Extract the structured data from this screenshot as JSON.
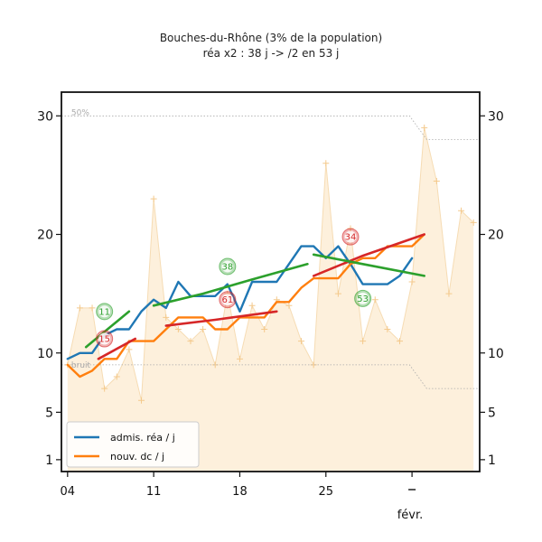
{
  "chart_data": {
    "type": "line",
    "title": "Bouches-du-Rhône (3% de la population)",
    "subtitle": "réa x2 : 38 j -> /2 en 53 j",
    "x_ticks": [
      {
        "day": 0,
        "label": "04"
      },
      {
        "day": 7,
        "label": "11"
      },
      {
        "day": 14,
        "label": "18"
      },
      {
        "day": 21,
        "label": "25"
      },
      {
        "day": 28,
        "label": ""
      }
    ],
    "x_month_label": "févr.",
    "x_range": [
      -0.5,
      33.5
    ],
    "y_ticks": [
      1,
      5,
      10,
      20,
      30
    ],
    "y_range": [
      0,
      32
    ],
    "reference_labels": {
      "upper": "50%",
      "lower": "bruit"
    },
    "reference_upper": [
      {
        "x": -0.5,
        "y": 30
      },
      {
        "x": 27.8,
        "y": 30
      },
      {
        "x": 29.2,
        "y": 28
      },
      {
        "x": 33.5,
        "y": 28
      }
    ],
    "reference_lower": [
      {
        "x": -0.5,
        "y": 9
      },
      {
        "x": 27.8,
        "y": 9
      },
      {
        "x": 29.2,
        "y": 7
      },
      {
        "x": 33.5,
        "y": 7
      }
    ],
    "raw_points": [
      {
        "x": 0,
        "y": 9
      },
      {
        "x": 1,
        "y": 13.8
      },
      {
        "x": 2,
        "y": 13.8
      },
      {
        "x": 3,
        "y": 7
      },
      {
        "x": 4,
        "y": 8
      },
      {
        "x": 5,
        "y": 10.3
      },
      {
        "x": 6,
        "y": 6
      },
      {
        "x": 7,
        "y": 23
      },
      {
        "x": 8,
        "y": 13
      },
      {
        "x": 9,
        "y": 12
      },
      {
        "x": 10,
        "y": 11
      },
      {
        "x": 11,
        "y": 12
      },
      {
        "x": 12,
        "y": 9
      },
      {
        "x": 13,
        "y": 15
      },
      {
        "x": 14,
        "y": 9.5
      },
      {
        "x": 15,
        "y": 14
      },
      {
        "x": 16,
        "y": 12
      },
      {
        "x": 17,
        "y": 14.5
      },
      {
        "x": 18,
        "y": 14
      },
      {
        "x": 19,
        "y": 11
      },
      {
        "x": 20,
        "y": 9
      },
      {
        "x": 21,
        "y": 26
      },
      {
        "x": 22,
        "y": 15
      },
      {
        "x": 23,
        "y": 20.5
      },
      {
        "x": 24,
        "y": 11
      },
      {
        "x": 25,
        "y": 14.5
      },
      {
        "x": 26,
        "y": 12
      },
      {
        "x": 27,
        "y": 11
      },
      {
        "x": 28,
        "y": 16
      },
      {
        "x": 29,
        "y": 29
      },
      {
        "x": 30,
        "y": 24.5
      },
      {
        "x": 31,
        "y": 15
      },
      {
        "x": 32,
        "y": 22
      },
      {
        "x": 33,
        "y": 21
      }
    ],
    "series": [
      {
        "name": "admis. réa / j",
        "color": "#1f77b4",
        "points": [
          {
            "x": 0,
            "y": 9.5
          },
          {
            "x": 1,
            "y": 10
          },
          {
            "x": 2,
            "y": 10
          },
          {
            "x": 3,
            "y": 11.5
          },
          {
            "x": 4,
            "y": 12
          },
          {
            "x": 5,
            "y": 12
          },
          {
            "x": 6,
            "y": 13.5
          },
          {
            "x": 7,
            "y": 14.5
          },
          {
            "x": 8,
            "y": 13.8
          },
          {
            "x": 9,
            "y": 16
          },
          {
            "x": 10,
            "y": 14.8
          },
          {
            "x": 11,
            "y": 14.8
          },
          {
            "x": 12,
            "y": 14.8
          },
          {
            "x": 13,
            "y": 15.8
          },
          {
            "x": 14,
            "y": 13.5
          },
          {
            "x": 15,
            "y": 16
          },
          {
            "x": 16,
            "y": 16
          },
          {
            "x": 17,
            "y": 16
          },
          {
            "x": 18,
            "y": 17.5
          },
          {
            "x": 19,
            "y": 19
          },
          {
            "x": 20,
            "y": 19
          },
          {
            "x": 21,
            "y": 18
          },
          {
            "x": 22,
            "y": 19
          },
          {
            "x": 23,
            "y": 17.5
          },
          {
            "x": 24,
            "y": 15.8
          },
          {
            "x": 25,
            "y": 15.8
          },
          {
            "x": 26,
            "y": 15.8
          },
          {
            "x": 27,
            "y": 16.5
          },
          {
            "x": 28,
            "y": 18
          }
        ]
      },
      {
        "name": "nouv. dc / j",
        "color": "#ff7f0e",
        "points": [
          {
            "x": 0,
            "y": 9
          },
          {
            "x": 1,
            "y": 8
          },
          {
            "x": 2,
            "y": 8.5
          },
          {
            "x": 3,
            "y": 9.5
          },
          {
            "x": 4,
            "y": 9.5
          },
          {
            "x": 5,
            "y": 11
          },
          {
            "x": 6,
            "y": 11
          },
          {
            "x": 7,
            "y": 11
          },
          {
            "x": 8,
            "y": 12
          },
          {
            "x": 9,
            "y": 13
          },
          {
            "x": 10,
            "y": 13
          },
          {
            "x": 11,
            "y": 13
          },
          {
            "x": 12,
            "y": 12
          },
          {
            "x": 13,
            "y": 12
          },
          {
            "x": 14,
            "y": 13
          },
          {
            "x": 15,
            "y": 13
          },
          {
            "x": 16,
            "y": 13
          },
          {
            "x": 17,
            "y": 14.3
          },
          {
            "x": 18,
            "y": 14.3
          },
          {
            "x": 19,
            "y": 15.5
          },
          {
            "x": 20,
            "y": 16.3
          },
          {
            "x": 21,
            "y": 16.3
          },
          {
            "x": 22,
            "y": 16.3
          },
          {
            "x": 23,
            "y": 17.5
          },
          {
            "x": 24,
            "y": 18
          },
          {
            "x": 25,
            "y": 18
          },
          {
            "x": 26,
            "y": 19
          },
          {
            "x": 27,
            "y": 19
          },
          {
            "x": 28,
            "y": 19
          },
          {
            "x": 29,
            "y": 20
          }
        ]
      }
    ],
    "trend_lines": [
      {
        "kind": "growth",
        "color": "#2ca02c",
        "points": [
          {
            "x": 1.5,
            "y": 10.5
          },
          {
            "x": 5,
            "y": 13.5
          }
        ]
      },
      {
        "kind": "decay",
        "color": "#d62728",
        "points": [
          {
            "x": 2.5,
            "y": 9.5
          },
          {
            "x": 5.5,
            "y": 11.2
          }
        ]
      },
      {
        "kind": "growth",
        "color": "#2ca02c",
        "points": [
          {
            "x": 7,
            "y": 14
          },
          {
            "x": 11,
            "y": 15
          },
          {
            "x": 15,
            "y": 16.2
          },
          {
            "x": 19.5,
            "y": 17.5
          }
        ]
      },
      {
        "kind": "decay",
        "color": "#d62728",
        "points": [
          {
            "x": 8,
            "y": 12.3
          },
          {
            "x": 12,
            "y": 12.8
          },
          {
            "x": 17,
            "y": 13.5
          }
        ]
      },
      {
        "kind": "decay",
        "color": "#d62728",
        "points": [
          {
            "x": 20,
            "y": 16.5
          },
          {
            "x": 24,
            "y": 18.2
          },
          {
            "x": 29,
            "y": 20
          }
        ]
      },
      {
        "kind": "growth",
        "color": "#2ca02c",
        "points": [
          {
            "x": 20,
            "y": 18.3
          },
          {
            "x": 24,
            "y": 17.5
          },
          {
            "x": 29,
            "y": 16.5
          }
        ]
      }
    ],
    "badges": [
      {
        "x": 3,
        "y": 13.5,
        "label": "11",
        "color": "#2ca02c"
      },
      {
        "x": 3,
        "y": 11.2,
        "label": "15",
        "color": "#d62728"
      },
      {
        "x": 13,
        "y": 17.3,
        "label": "38",
        "color": "#2ca02c"
      },
      {
        "x": 13,
        "y": 14.5,
        "label": "61",
        "color": "#d62728"
      },
      {
        "x": 23,
        "y": 19.8,
        "label": "34",
        "color": "#d62728"
      },
      {
        "x": 24,
        "y": 14.6,
        "label": "53",
        "color": "#2ca02c"
      }
    ],
    "legend": {
      "placement": "lower-left"
    }
  }
}
